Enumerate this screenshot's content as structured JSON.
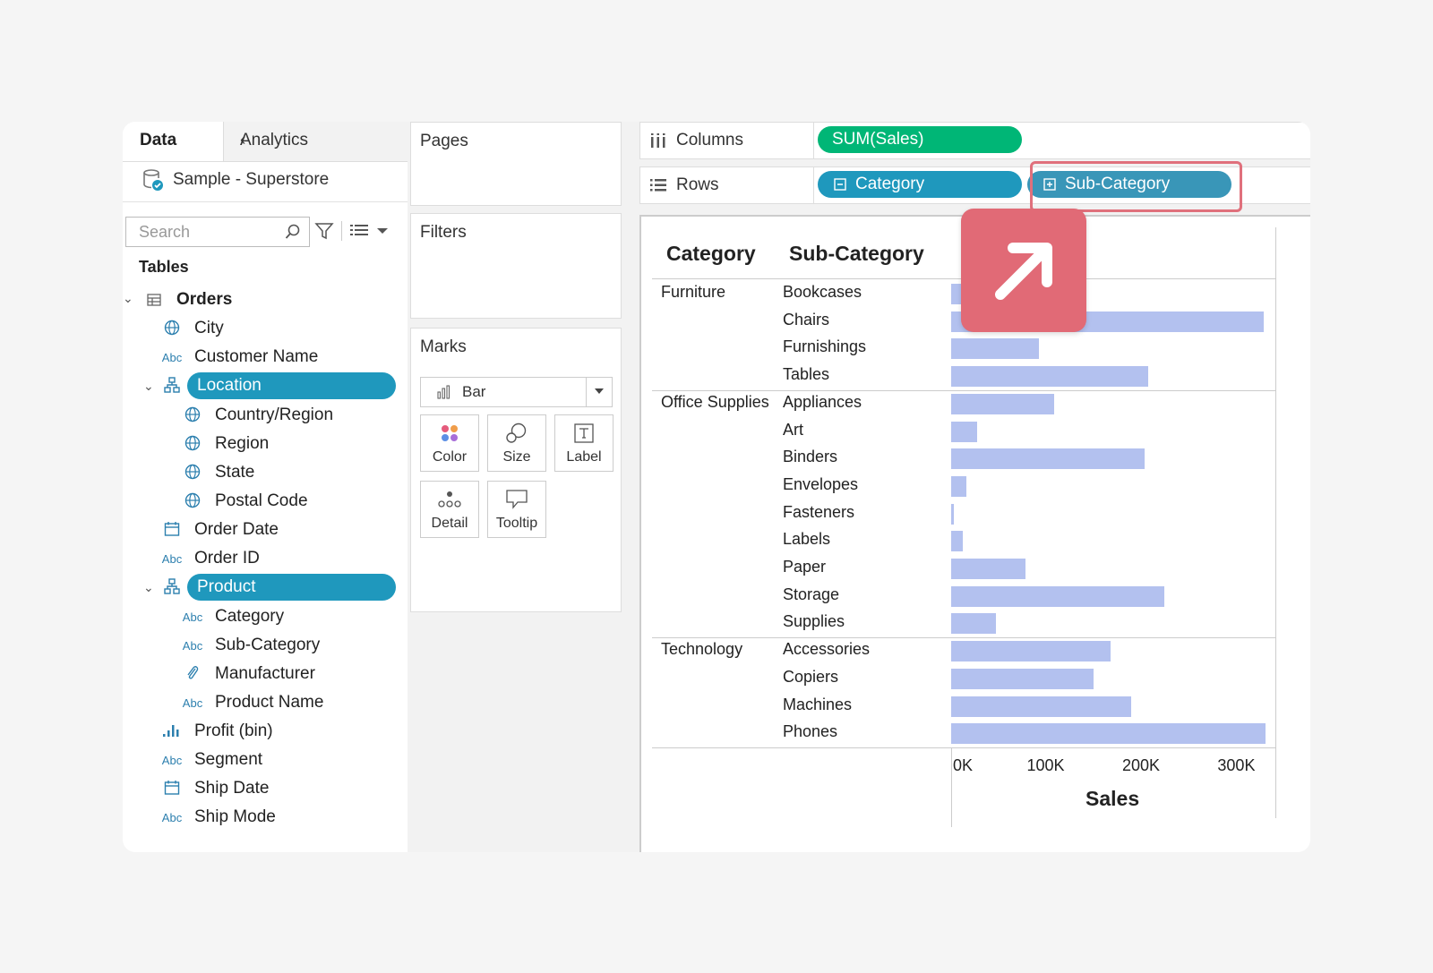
{
  "data_pane": {
    "tab_data": "Data",
    "tab_analytics": "Analytics",
    "datasource": "Sample - Superstore",
    "search_placeholder": "Search",
    "tables_heading": "Tables",
    "table_name": "Orders",
    "fields": {
      "city": "City",
      "customer_name": "Customer Name",
      "location": "Location",
      "country_region": "Country/Region",
      "region": "Region",
      "state": "State",
      "postal_code": "Postal Code",
      "order_date": "Order Date",
      "order_id": "Order ID",
      "product": "Product",
      "category": "Category",
      "sub_category": "Sub-Category",
      "manufacturer": "Manufacturer",
      "product_name": "Product Name",
      "profit_bin": "Profit (bin)",
      "segment": "Segment",
      "ship_date": "Ship Date",
      "ship_mode": "Ship Mode"
    },
    "abc_label": "Abc"
  },
  "cards": {
    "pages": "Pages",
    "filters": "Filters",
    "marks": "Marks",
    "mark_type": "Bar",
    "color": "Color",
    "size": "Size",
    "label": "Label",
    "detail": "Detail",
    "tooltip": "Tooltip"
  },
  "shelves": {
    "columns_label": "Columns",
    "columns_pill": "SUM(Sales)",
    "rows_label": "Rows",
    "rows_pill_1": "Category",
    "rows_pill_2": "Sub-Category"
  },
  "colors": {
    "selected_pill": "#1f98bd",
    "measure_pill": "#00b676",
    "bar": "#b3c1ef",
    "callout": "#e16a76"
  },
  "chart_data": {
    "type": "bar",
    "orientation": "horizontal",
    "row_headers": [
      "Category",
      "Sub-Category"
    ],
    "xlabel": "Sales",
    "xlim": [
      0,
      340000
    ],
    "ticks": [
      "0K",
      "100K",
      "200K",
      "300K"
    ],
    "tick_values": [
      0,
      100000,
      200000,
      300000
    ],
    "groups": [
      {
        "category": "Furniture",
        "items": [
          {
            "sub": "Bookcases",
            "value": 115000
          },
          {
            "sub": "Chairs",
            "value": 328000
          },
          {
            "sub": "Furnishings",
            "value": 92000
          },
          {
            "sub": "Tables",
            "value": 207000
          }
        ]
      },
      {
        "category": "Office Supplies",
        "items": [
          {
            "sub": "Appliances",
            "value": 108000
          },
          {
            "sub": "Art",
            "value": 27000
          },
          {
            "sub": "Binders",
            "value": 203000
          },
          {
            "sub": "Envelopes",
            "value": 16000
          },
          {
            "sub": "Fasteners",
            "value": 3000
          },
          {
            "sub": "Labels",
            "value": 12500
          },
          {
            "sub": "Paper",
            "value": 78000
          },
          {
            "sub": "Storage",
            "value": 224000
          },
          {
            "sub": "Supplies",
            "value": 47000
          }
        ]
      },
      {
        "category": "Technology",
        "items": [
          {
            "sub": "Accessories",
            "value": 167000
          },
          {
            "sub": "Copiers",
            "value": 149000
          },
          {
            "sub": "Machines",
            "value": 189000
          },
          {
            "sub": "Phones",
            "value": 330000
          }
        ]
      }
    ]
  }
}
